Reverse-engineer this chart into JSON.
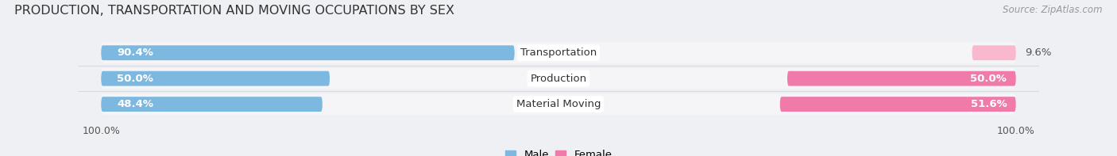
{
  "title": "PRODUCTION, TRANSPORTATION AND MOVING OCCUPATIONS BY SEX",
  "source": "Source: ZipAtlas.com",
  "categories": [
    "Transportation",
    "Production",
    "Material Moving"
  ],
  "male_pct": [
    90.4,
    50.0,
    48.4
  ],
  "female_pct": [
    9.6,
    50.0,
    51.6
  ],
  "male_color": "#7db8e0",
  "female_color": "#f07aaa",
  "female_color_light": "#f9b8ce",
  "male_label": "Male",
  "female_label": "Female",
  "bar_height": 0.58,
  "bg_color": "#eef0f4",
  "row_bg_color": "#f5f5f8",
  "row_separator_color": "#d8dae0",
  "title_fontsize": 11.5,
  "label_fontsize": 9.5,
  "pct_fontsize": 9.5,
  "axis_label_fontsize": 9,
  "source_fontsize": 8.5
}
